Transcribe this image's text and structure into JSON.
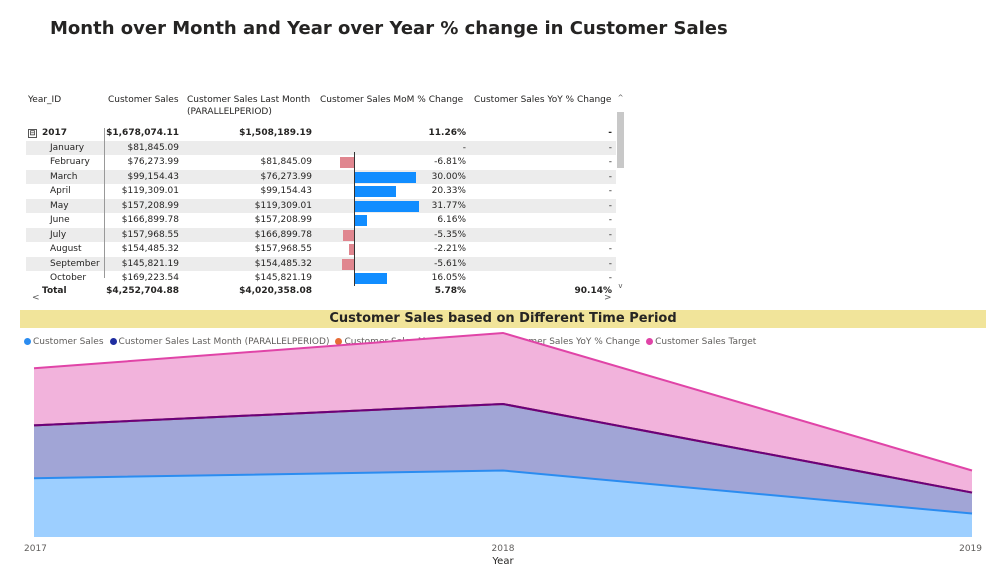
{
  "page": {
    "title": "Month over Month and Year over Year % change in Customer Sales"
  },
  "matrix": {
    "headers": {
      "year_id": "Year_ID",
      "sales": "Customer Sales",
      "last_month": "Customer Sales Last Month",
      "last_month_sub": "(PARALLELPERIOD)",
      "mom": "Customer Sales MoM % Change",
      "yoy": "Customer Sales YoY % Change"
    },
    "rows": [
      {
        "label": "2017",
        "sales": "$1,678,074.11",
        "last": "$1,508,189.19",
        "mom": "11.26%",
        "yoy": "-",
        "mom_value": null,
        "bold": true,
        "expand": "⊟"
      },
      {
        "label": "January",
        "sales": "$81,845.09",
        "last": "",
        "mom": "-",
        "yoy": "-",
        "mom_value": null
      },
      {
        "label": "February",
        "sales": "$76,273.99",
        "last": "$81,845.09",
        "mom": "-6.81%",
        "yoy": "-",
        "mom_value": -6.81
      },
      {
        "label": "March",
        "sales": "$99,154.43",
        "last": "$76,273.99",
        "mom": "30.00%",
        "yoy": "-",
        "mom_value": 30.0
      },
      {
        "label": "April",
        "sales": "$119,309.01",
        "last": "$99,154.43",
        "mom": "20.33%",
        "yoy": "-",
        "mom_value": 20.33
      },
      {
        "label": "May",
        "sales": "$157,208.99",
        "last": "$119,309.01",
        "mom": "31.77%",
        "yoy": "-",
        "mom_value": 31.77
      },
      {
        "label": "June",
        "sales": "$166,899.78",
        "last": "$157,208.99",
        "mom": "6.16%",
        "yoy": "-",
        "mom_value": 6.16
      },
      {
        "label": "July",
        "sales": "$157,968.55",
        "last": "$166,899.78",
        "mom": "-5.35%",
        "yoy": "-",
        "mom_value": -5.35
      },
      {
        "label": "August",
        "sales": "$154,485.32",
        "last": "$157,968.55",
        "mom": "-2.21%",
        "yoy": "-",
        "mom_value": -2.21
      },
      {
        "label": "September",
        "sales": "$145,821.19",
        "last": "$154,485.32",
        "mom": "-5.61%",
        "yoy": "-",
        "mom_value": -5.61
      },
      {
        "label": "October",
        "sales": "$169,223.54",
        "last": "$145,821.19",
        "mom": "16.05%",
        "yoy": "-",
        "mom_value": 16.05
      }
    ],
    "total": {
      "label": "Total",
      "sales": "$4,252,704.88",
      "last": "$4,020,358.08",
      "mom": "5.78%",
      "yoy": "90.14%"
    },
    "colors": {
      "positive": "#118dff",
      "negative": "#e0868f"
    },
    "scroll_glyphs": {
      "up": "^",
      "down": "v",
      "left": "<",
      "right": ">"
    }
  },
  "chart": {
    "title": "Customer Sales based on Different Time Period",
    "legend": [
      {
        "label": "Customer Sales",
        "color": "#2b8cf0"
      },
      {
        "label": "Customer Sales Last Month (PARALLELPERIOD)",
        "color": "#1f2da0"
      },
      {
        "label": "Customer Sales MoM % Change",
        "color": "#e66c37"
      },
      {
        "label": "Customer Sales YoY % Change",
        "color": "#6b007b"
      },
      {
        "label": "Customer Sales Target",
        "color": "#e044a7"
      }
    ]
  },
  "chart_data": {
    "type": "area",
    "title": "Customer Sales based on Different Time Period",
    "xlabel": "Year",
    "ylabel": "",
    "x": [
      "2017",
      "2018",
      "2019"
    ],
    "stacked": true,
    "grid": false,
    "legend_position": "top-left",
    "series": [
      {
        "name": "Customer Sales",
        "values": [
          1.68,
          1.9,
          0.67
        ],
        "color": "#2b8cf0",
        "fill": "#9dcfff"
      },
      {
        "name": "Customer Sales Last Month (PARALLELPERIOD)",
        "values": [
          1.51,
          1.9,
          0.6
        ],
        "color": "#1f2da0",
        "fill": "#a1a5d6"
      },
      {
        "name": "Customer Sales MoM % Change",
        "values": [
          0.0,
          0.0,
          0.0
        ],
        "color": "#e66c37",
        "fill": "none"
      },
      {
        "name": "Customer Sales YoY % Change",
        "values": [
          0.0,
          0.0,
          0.0
        ],
        "color": "#6b007b",
        "fill": "none"
      },
      {
        "name": "Customer Sales Target",
        "values": [
          1.63,
          2.03,
          0.63
        ],
        "color": "#e044a7",
        "fill": "#f2b3dc"
      }
    ]
  }
}
